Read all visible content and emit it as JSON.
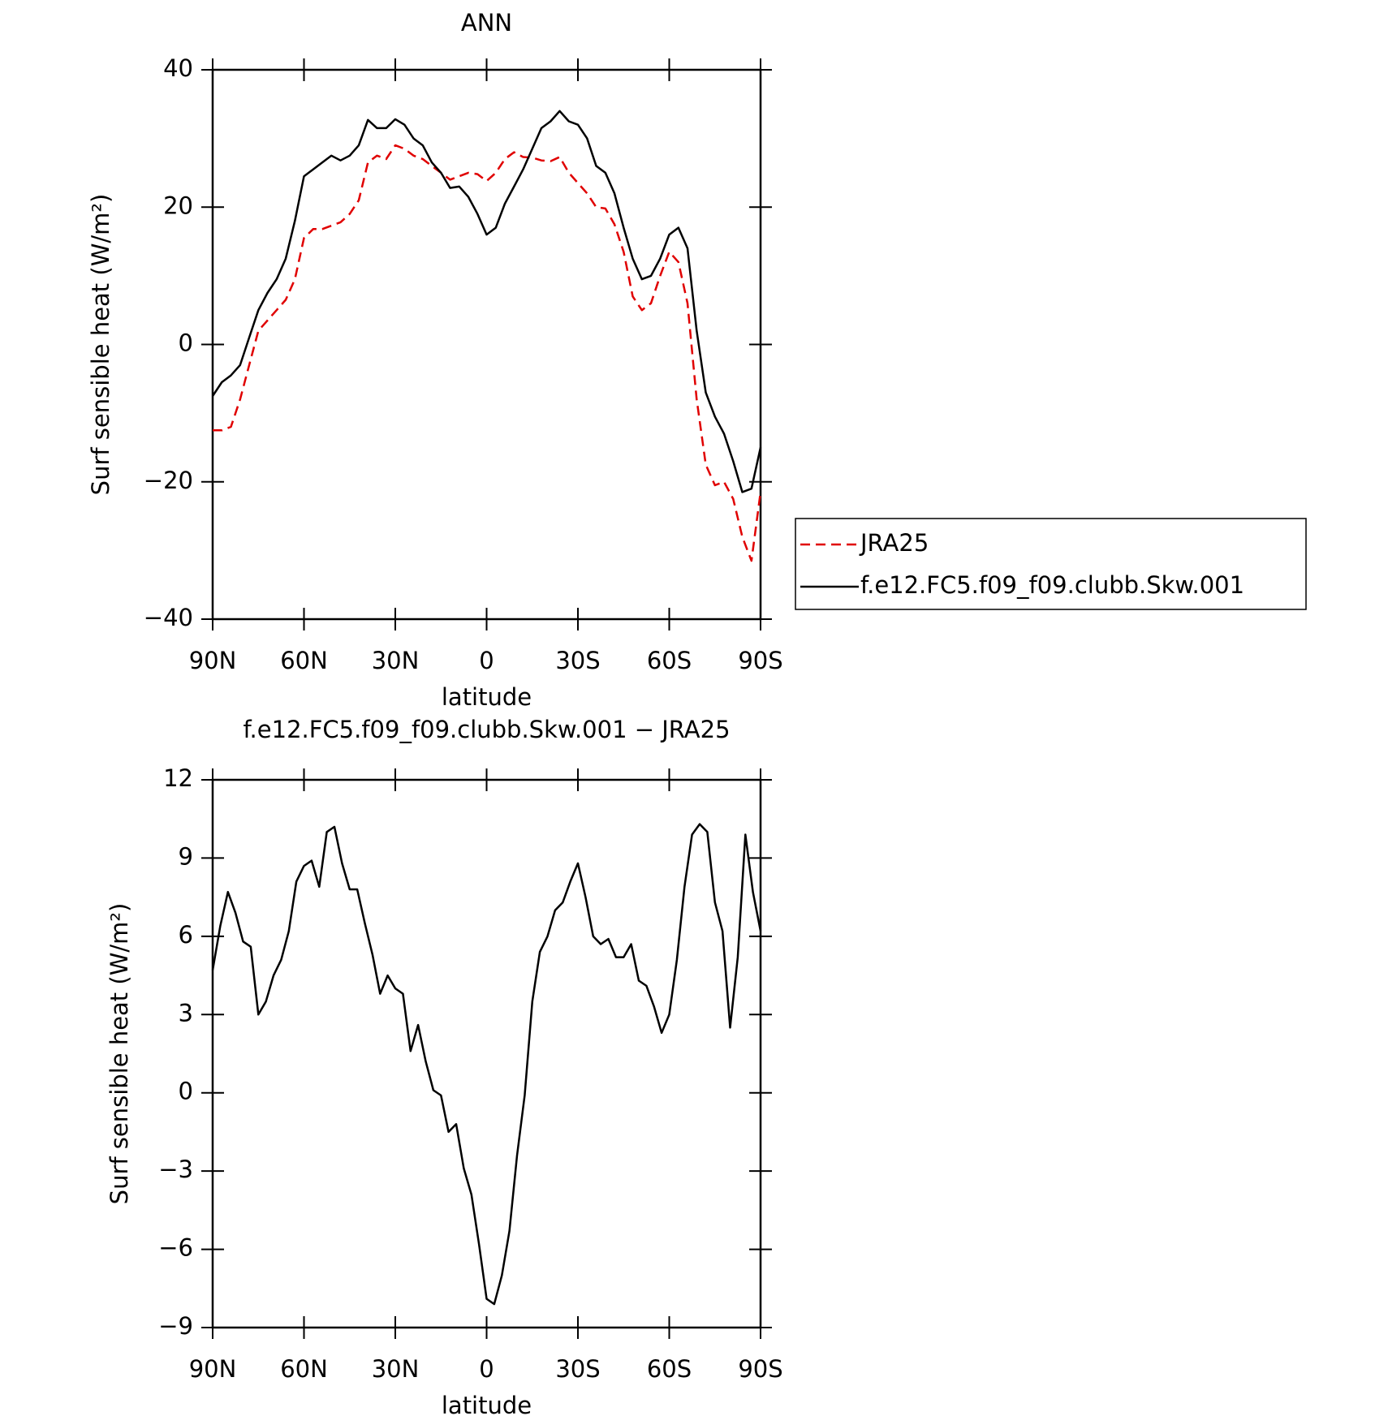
{
  "chart_data": [
    {
      "type": "line",
      "title": "ANN",
      "xlabel": "latitude",
      "ylabel": "Surf sensible heat (W/m²)",
      "x": [
        90,
        87,
        84,
        81,
        78,
        75,
        72,
        69,
        66,
        63,
        60,
        57,
        54,
        51,
        48,
        45,
        42,
        39,
        36,
        33,
        30,
        27,
        24,
        21,
        18,
        15,
        12,
        9,
        6,
        3,
        0,
        -3,
        -6,
        -9,
        -12,
        -15,
        -18,
        -21,
        -24,
        -27,
        -30,
        -33,
        -36,
        -39,
        -42,
        -45,
        -48,
        -51,
        -54,
        -57,
        -60,
        -63,
        -66,
        -69,
        -72,
        -75,
        -78,
        -81,
        -84,
        -87,
        -90
      ],
      "series": [
        {
          "name": "JRA25",
          "color": "#e00000",
          "line_style": "dashed",
          "values": [
            -12.5,
            -12.5,
            -12,
            -8,
            -3,
            2,
            3.5,
            5,
            6.5,
            9.5,
            15.5,
            16.8,
            16.8,
            17.3,
            17.8,
            19,
            21,
            26.5,
            27.5,
            27,
            29,
            28.5,
            27.5,
            27,
            26,
            25,
            24,
            24.5,
            25,
            24.8,
            23.8,
            25,
            27,
            28,
            27.3,
            27.2,
            26.8,
            26.7,
            27.3,
            25,
            23.5,
            22,
            20,
            19.8,
            17.5,
            13.5,
            7,
            5,
            6,
            10,
            13.5,
            12,
            6,
            -8,
            -17.5,
            -20.5,
            -20,
            -22.5,
            -28,
            -31.5,
            -21.5
          ]
        },
        {
          "name": "f.e12.FC5.f09_f09.clubb.Skw.001",
          "color": "#000000",
          "line_style": "solid",
          "values": [
            -7.5,
            -5.5,
            -4.5,
            -3,
            1,
            5,
            7.5,
            9.5,
            12.5,
            18,
            24.5,
            25.5,
            26.5,
            27.5,
            26.8,
            27.5,
            29,
            32.7,
            31.5,
            31.5,
            32.8,
            32,
            30,
            29,
            26.5,
            25,
            22.8,
            23,
            21.5,
            19,
            16,
            17,
            20.5,
            23,
            25.5,
            28.5,
            31.5,
            32.5,
            34,
            32.5,
            32,
            30,
            26,
            25,
            22,
            17,
            12.5,
            9.5,
            10,
            12.5,
            16,
            17,
            14,
            2,
            -7,
            -10.5,
            -13,
            -17,
            -21.5,
            -21,
            -15
          ]
        }
      ],
      "xlim": [
        90,
        -90
      ],
      "xticks": [
        {
          "value": 90,
          "label": "90N"
        },
        {
          "value": 60,
          "label": "60N"
        },
        {
          "value": 30,
          "label": "30N"
        },
        0,
        {
          "value": -30,
          "label": "30S"
        },
        {
          "value": -60,
          "label": "60S"
        },
        {
          "value": -90,
          "label": "90S"
        }
      ],
      "ylim": [
        -40,
        40
      ],
      "yticks": [
        {
          "value": -40,
          "label": "−40"
        },
        {
          "value": -20,
          "label": "−20"
        },
        0,
        20,
        40
      ],
      "legend": "right"
    },
    {
      "type": "line",
      "title": "f.e12.FC5.f09_f09.clubb.Skw.001 − JRA25",
      "xlabel": "latitude",
      "ylabel": "Surf sensible heat (W/m²)",
      "x": [
        90,
        87.5,
        85,
        82.5,
        80,
        77.5,
        75,
        72.5,
        70,
        67.5,
        65,
        62.5,
        60,
        57.5,
        55,
        52.5,
        50,
        47.5,
        45,
        42.5,
        40,
        37.5,
        35,
        32.5,
        30,
        27.5,
        25,
        22.5,
        20,
        17.5,
        15,
        12.5,
        10,
        7.5,
        5,
        2.5,
        0,
        -2.5,
        -5,
        -7.5,
        -10,
        -12.5,
        -15,
        -17.5,
        -20,
        -22.5,
        -25,
        -27.5,
        -30,
        -32.5,
        -35,
        -37.5,
        -40,
        -42.5,
        -45,
        -47.5,
        -50,
        -52.5,
        -55,
        -57.5,
        -60,
        -62.5,
        -65,
        -67.5,
        -70,
        -72.5,
        -75,
        -77.5,
        -80,
        -82.5,
        -85,
        -87.5,
        -90
      ],
      "series": [
        {
          "name": "f.e12.FC5.f09_f09.clubb.Skw.001 − JRA25",
          "color": "#000000",
          "line_style": "solid",
          "values": [
            4.7,
            6.4,
            7.7,
            6.9,
            5.8,
            5.6,
            3,
            3.5,
            4.5,
            5.1,
            6.2,
            8.1,
            8.7,
            8.9,
            7.9,
            10,
            10.2,
            8.8,
            7.8,
            7.8,
            6.5,
            5.3,
            3.8,
            4.5,
            4,
            3.8,
            1.6,
            2.6,
            1.2,
            0.1,
            -0.1,
            -1.5,
            -1.2,
            -2.9,
            -3.9,
            -5.8,
            -7.9,
            -8.1,
            -7,
            -5.3,
            -2.4,
            -0.1,
            3.5,
            5.4,
            6,
            7,
            7.3,
            8.1,
            8.8,
            7.5,
            6,
            5.7,
            5.9,
            5.2,
            5.2,
            5.7,
            4.3,
            4.1,
            3.3,
            2.3,
            3,
            5.1,
            7.9,
            9.9,
            10.3,
            10,
            7.3,
            6.2,
            2.5,
            5.2,
            9.9,
            7.7,
            6.2
          ]
        }
      ],
      "xlim": [
        90,
        -90
      ],
      "xticks": [
        {
          "value": 90,
          "label": "90N"
        },
        {
          "value": 60,
          "label": "60N"
        },
        {
          "value": 30,
          "label": "30N"
        },
        0,
        {
          "value": -30,
          "label": "30S"
        },
        {
          "value": -60,
          "label": "60S"
        },
        {
          "value": -90,
          "label": "90S"
        }
      ],
      "ylim": [
        -9,
        12
      ],
      "yticks": [
        {
          "value": -9,
          "label": "−9"
        },
        {
          "value": -6,
          "label": "−6"
        },
        {
          "value": -3,
          "label": "−3"
        },
        0,
        3,
        6,
        9,
        12
      ]
    }
  ]
}
